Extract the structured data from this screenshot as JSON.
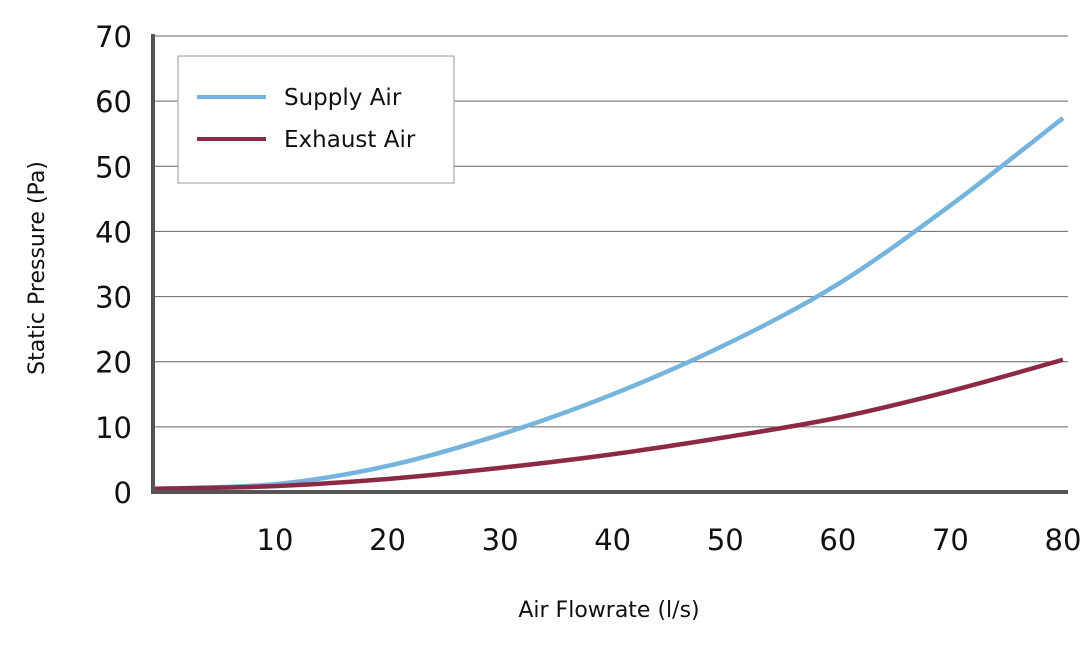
{
  "chart_data": {
    "type": "line",
    "title": "",
    "xlabel": "Air Flowrate (l/s)",
    "ylabel": "Static Pressure (Pa)",
    "xlim": [
      0,
      80
    ],
    "ylim": [
      0,
      70
    ],
    "xticks": [
      "10",
      "20",
      "30",
      "40",
      "50",
      "60",
      "70",
      "80"
    ],
    "yticks": [
      "0",
      "10",
      "20",
      "30",
      "40",
      "50",
      "60",
      "70"
    ],
    "grid": "horizontal",
    "legend_position": "top-left",
    "x": [
      0,
      10,
      20,
      30,
      40,
      50,
      60,
      70,
      80
    ],
    "series": [
      {
        "name": "Supply Air",
        "color": "#74b4dd",
        "values": [
          0.5,
          1.2,
          4.0,
          8.8,
          15.0,
          22.6,
          31.9,
          44.0,
          57.4
        ]
      },
      {
        "name": "Exhaust Air",
        "color": "#8c2a45",
        "values": [
          0.5,
          0.9,
          2.0,
          3.7,
          5.8,
          8.4,
          11.4,
          15.5,
          20.3
        ]
      }
    ]
  }
}
